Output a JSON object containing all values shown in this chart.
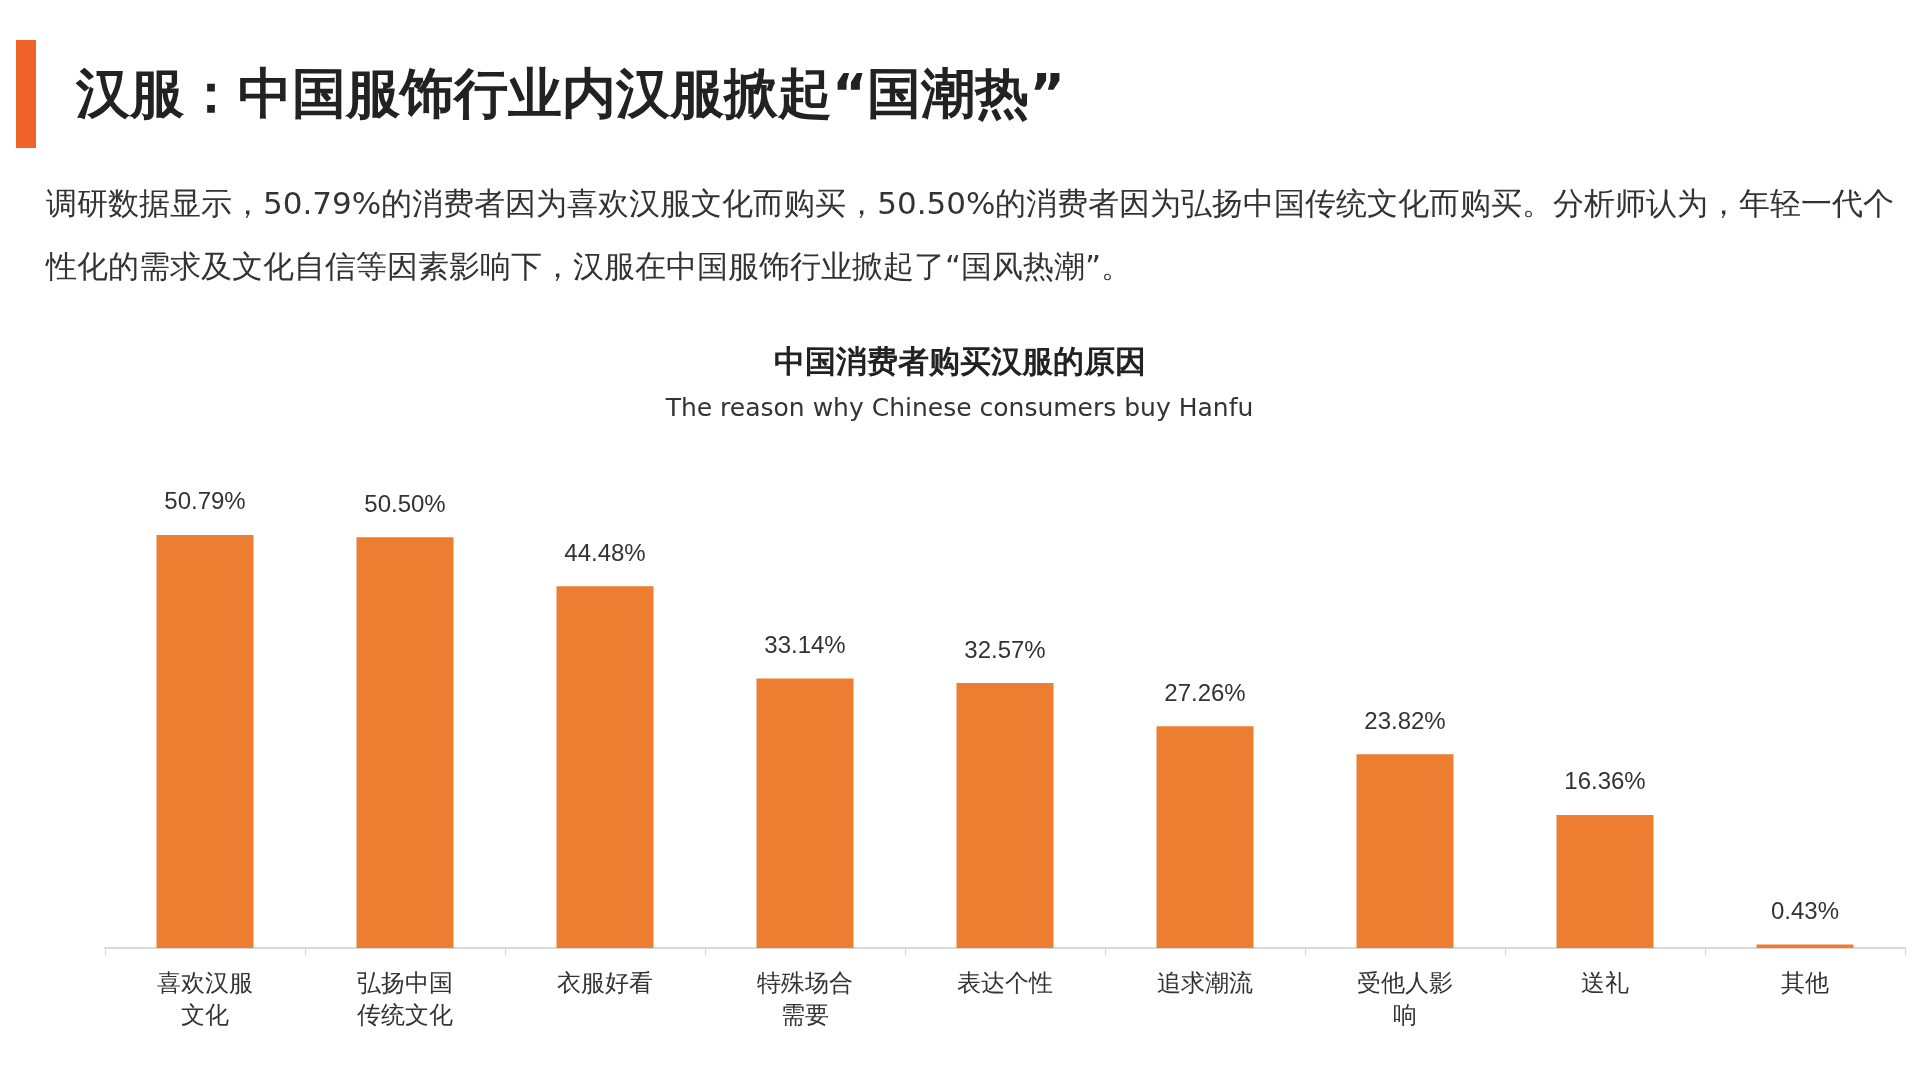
{
  "chart_data": {
    "type": "bar",
    "title": "汉服：中国服饰行业内汉服掀起“国潮热”",
    "subtitle": "调研数据显示，50.79%的消费者因为喜欢汉服文化而购买，50.50%的消费者因为弘扬中国传统文化而购买。分析师认为，年轻一代个性化的需求及文化自信等因素影响下，汉服在中国服饰行业掀起了“国风热潮”。",
    "annotations": [
      "中国消费者购买汉服的原因",
      "The reason why Chinese consumers buy Hanfu"
    ],
    "categories": [
      "喜欢汉服文化",
      "弘扬中国传统文化",
      "衣服好看",
      "特殊场合需要",
      "表达个性",
      "追求潮流",
      "受他人影响",
      "送礼",
      "其他"
    ],
    "values": [
      50.79,
      50.5,
      44.48,
      33.14,
      32.57,
      27.26,
      23.82,
      16.36,
      0.43
    ],
    "value_labels": [
      "50.79%",
      "50.50%",
      "44.48%",
      "33.14%",
      "32.57%",
      "27.26%",
      "23.82%",
      "16.36%",
      "0.43%"
    ],
    "color": "#ed7d31"
  }
}
